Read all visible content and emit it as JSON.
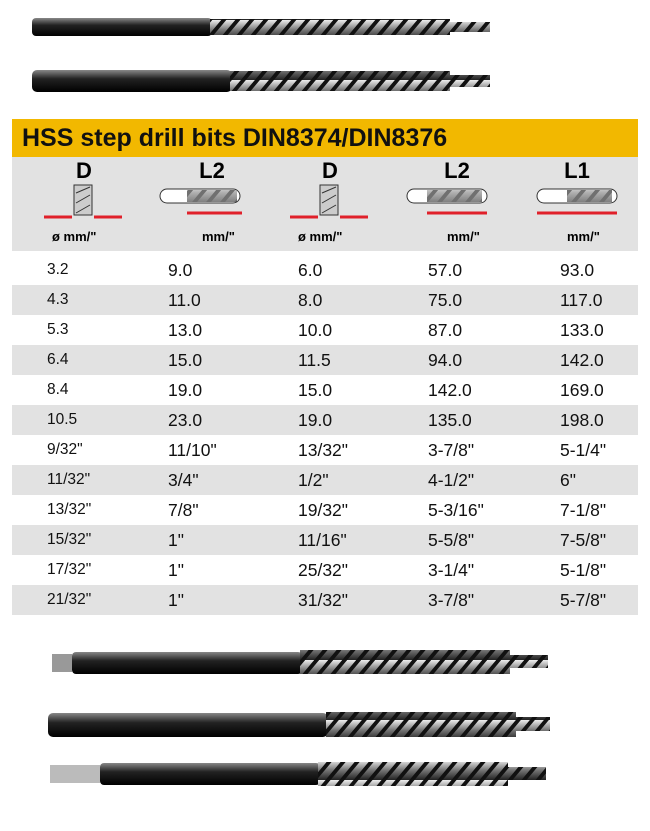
{
  "title": "HSS step drill bits DIN8374/DIN8376",
  "colors": {
    "title_bar": "#f2b800",
    "header_bg": "#e2e2e2",
    "stripe": "#e2e2e2",
    "dimension_arrow": "#e0202a"
  },
  "headers": [
    {
      "label": "D",
      "unit": "ø mm/\"",
      "icon": "drill-tip-diameter-icon"
    },
    {
      "label": "L2",
      "unit": "mm/\"",
      "icon": "drill-flute-length-icon"
    },
    {
      "label": "D",
      "unit": "ø mm/\"",
      "icon": "drill-tip-diameter-icon"
    },
    {
      "label": "L2",
      "unit": "mm/\"",
      "icon": "drill-flute-length-icon"
    },
    {
      "label": "L1",
      "unit": "mm/\"",
      "icon": "drill-overall-length-icon"
    }
  ],
  "rows": [
    [
      "3.2",
      "9.0",
      "6.0",
      "57.0",
      "93.0"
    ],
    [
      "4.3",
      "11.0",
      "8.0",
      "75.0",
      "117.0"
    ],
    [
      "5.3",
      "13.0",
      "10.0",
      "87.0",
      "133.0"
    ],
    [
      "6.4",
      "15.0",
      "11.5",
      "94.0",
      "142.0"
    ],
    [
      "8.4",
      "19.0",
      "15.0",
      "142.0",
      "169.0"
    ],
    [
      "10.5",
      "23.0",
      "19.0",
      "135.0",
      "198.0"
    ],
    [
      "9/32\"",
      "11/10\"",
      "13/32\"",
      "3-7/8\"",
      "5-1/4\""
    ],
    [
      "11/32\"",
      "3/4\"",
      "1/2\"",
      "4-1/2\"",
      "6\""
    ],
    [
      "13/32\"",
      "7/8\"",
      "19/32\"",
      "5-3/16\"",
      "7-1/8\""
    ],
    [
      "15/32\"",
      "1\"",
      "11/16\"",
      "5-5/8\"",
      "7-5/8\""
    ],
    [
      "17/32\"",
      "1\"",
      "25/32\"",
      "3-1/4\"",
      "5-1/8\""
    ],
    [
      "21/32\"",
      "1\"",
      "31/32\"",
      "3-7/8\"",
      "5-7/8\""
    ]
  ]
}
